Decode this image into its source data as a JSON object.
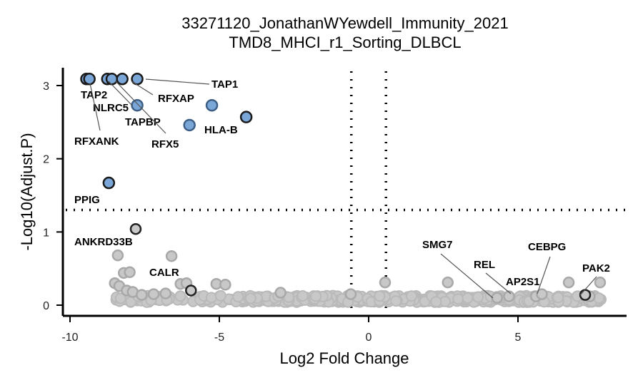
{
  "chart_data": {
    "type": "scatter",
    "title": "33271120_JonathanWYewdell_Immunity_2021",
    "subtitle": "TMD8_MHCI_r1_Sorting_DLBCL",
    "xlabel": "Log2 Fold Change",
    "ylabel": "-Log10(Adjust.P)",
    "xlim": [
      -10.2,
      8.7
    ],
    "ylim": [
      -0.15,
      3.2
    ],
    "xticks": [
      -10,
      -5,
      0,
      5
    ],
    "yticks": [
      0,
      1,
      2,
      3
    ],
    "thresholds": {
      "x": [
        -0.58,
        0.58
      ],
      "y": 1.3
    },
    "grid": false,
    "colors": {
      "significant": "#7aa6d8",
      "nonsignificant": "#c8c8c8",
      "axis": "#000000"
    },
    "significant_points": [
      {
        "x": -9.45,
        "y": 3.09,
        "gene": "TAP2"
      },
      {
        "x": -9.35,
        "y": 3.09
      },
      {
        "x": -8.75,
        "y": 3.09
      },
      {
        "x": -8.6,
        "y": 3.09,
        "gene": "NLRC5"
      },
      {
        "x": -8.25,
        "y": 3.09,
        "gene": "RFXAP"
      },
      {
        "x": -7.75,
        "y": 3.09,
        "gene": "TAP1"
      },
      {
        "x": -7.75,
        "y": 2.73,
        "gene": "TAPBP"
      },
      {
        "x": -5.25,
        "y": 2.73
      },
      {
        "x": -4.1,
        "y": 2.57
      },
      {
        "x": -6.0,
        "y": 2.46,
        "gene": "HLA-B"
      },
      {
        "x": -8.7,
        "y": 1.67,
        "gene": "PPIG"
      }
    ],
    "labeled_nonsignificant": [
      {
        "x": -7.8,
        "y": 1.04,
        "gene": "ANKRD33B"
      },
      {
        "x": -5.95,
        "y": 0.2,
        "gene": "CALR"
      },
      {
        "x": 4.3,
        "y": 0.1,
        "gene": "SMG7"
      },
      {
        "x": 4.7,
        "y": 0.12,
        "gene": "REL"
      },
      {
        "x": 5.6,
        "y": 0.12,
        "gene": "AP2S1"
      },
      {
        "x": 5.8,
        "y": 0.15,
        "gene": "CEBPG"
      },
      {
        "x": 7.25,
        "y": 0.14,
        "gene": "PAK2"
      }
    ],
    "gene_only_labels": [
      "RFXANK",
      "RFX5"
    ]
  }
}
